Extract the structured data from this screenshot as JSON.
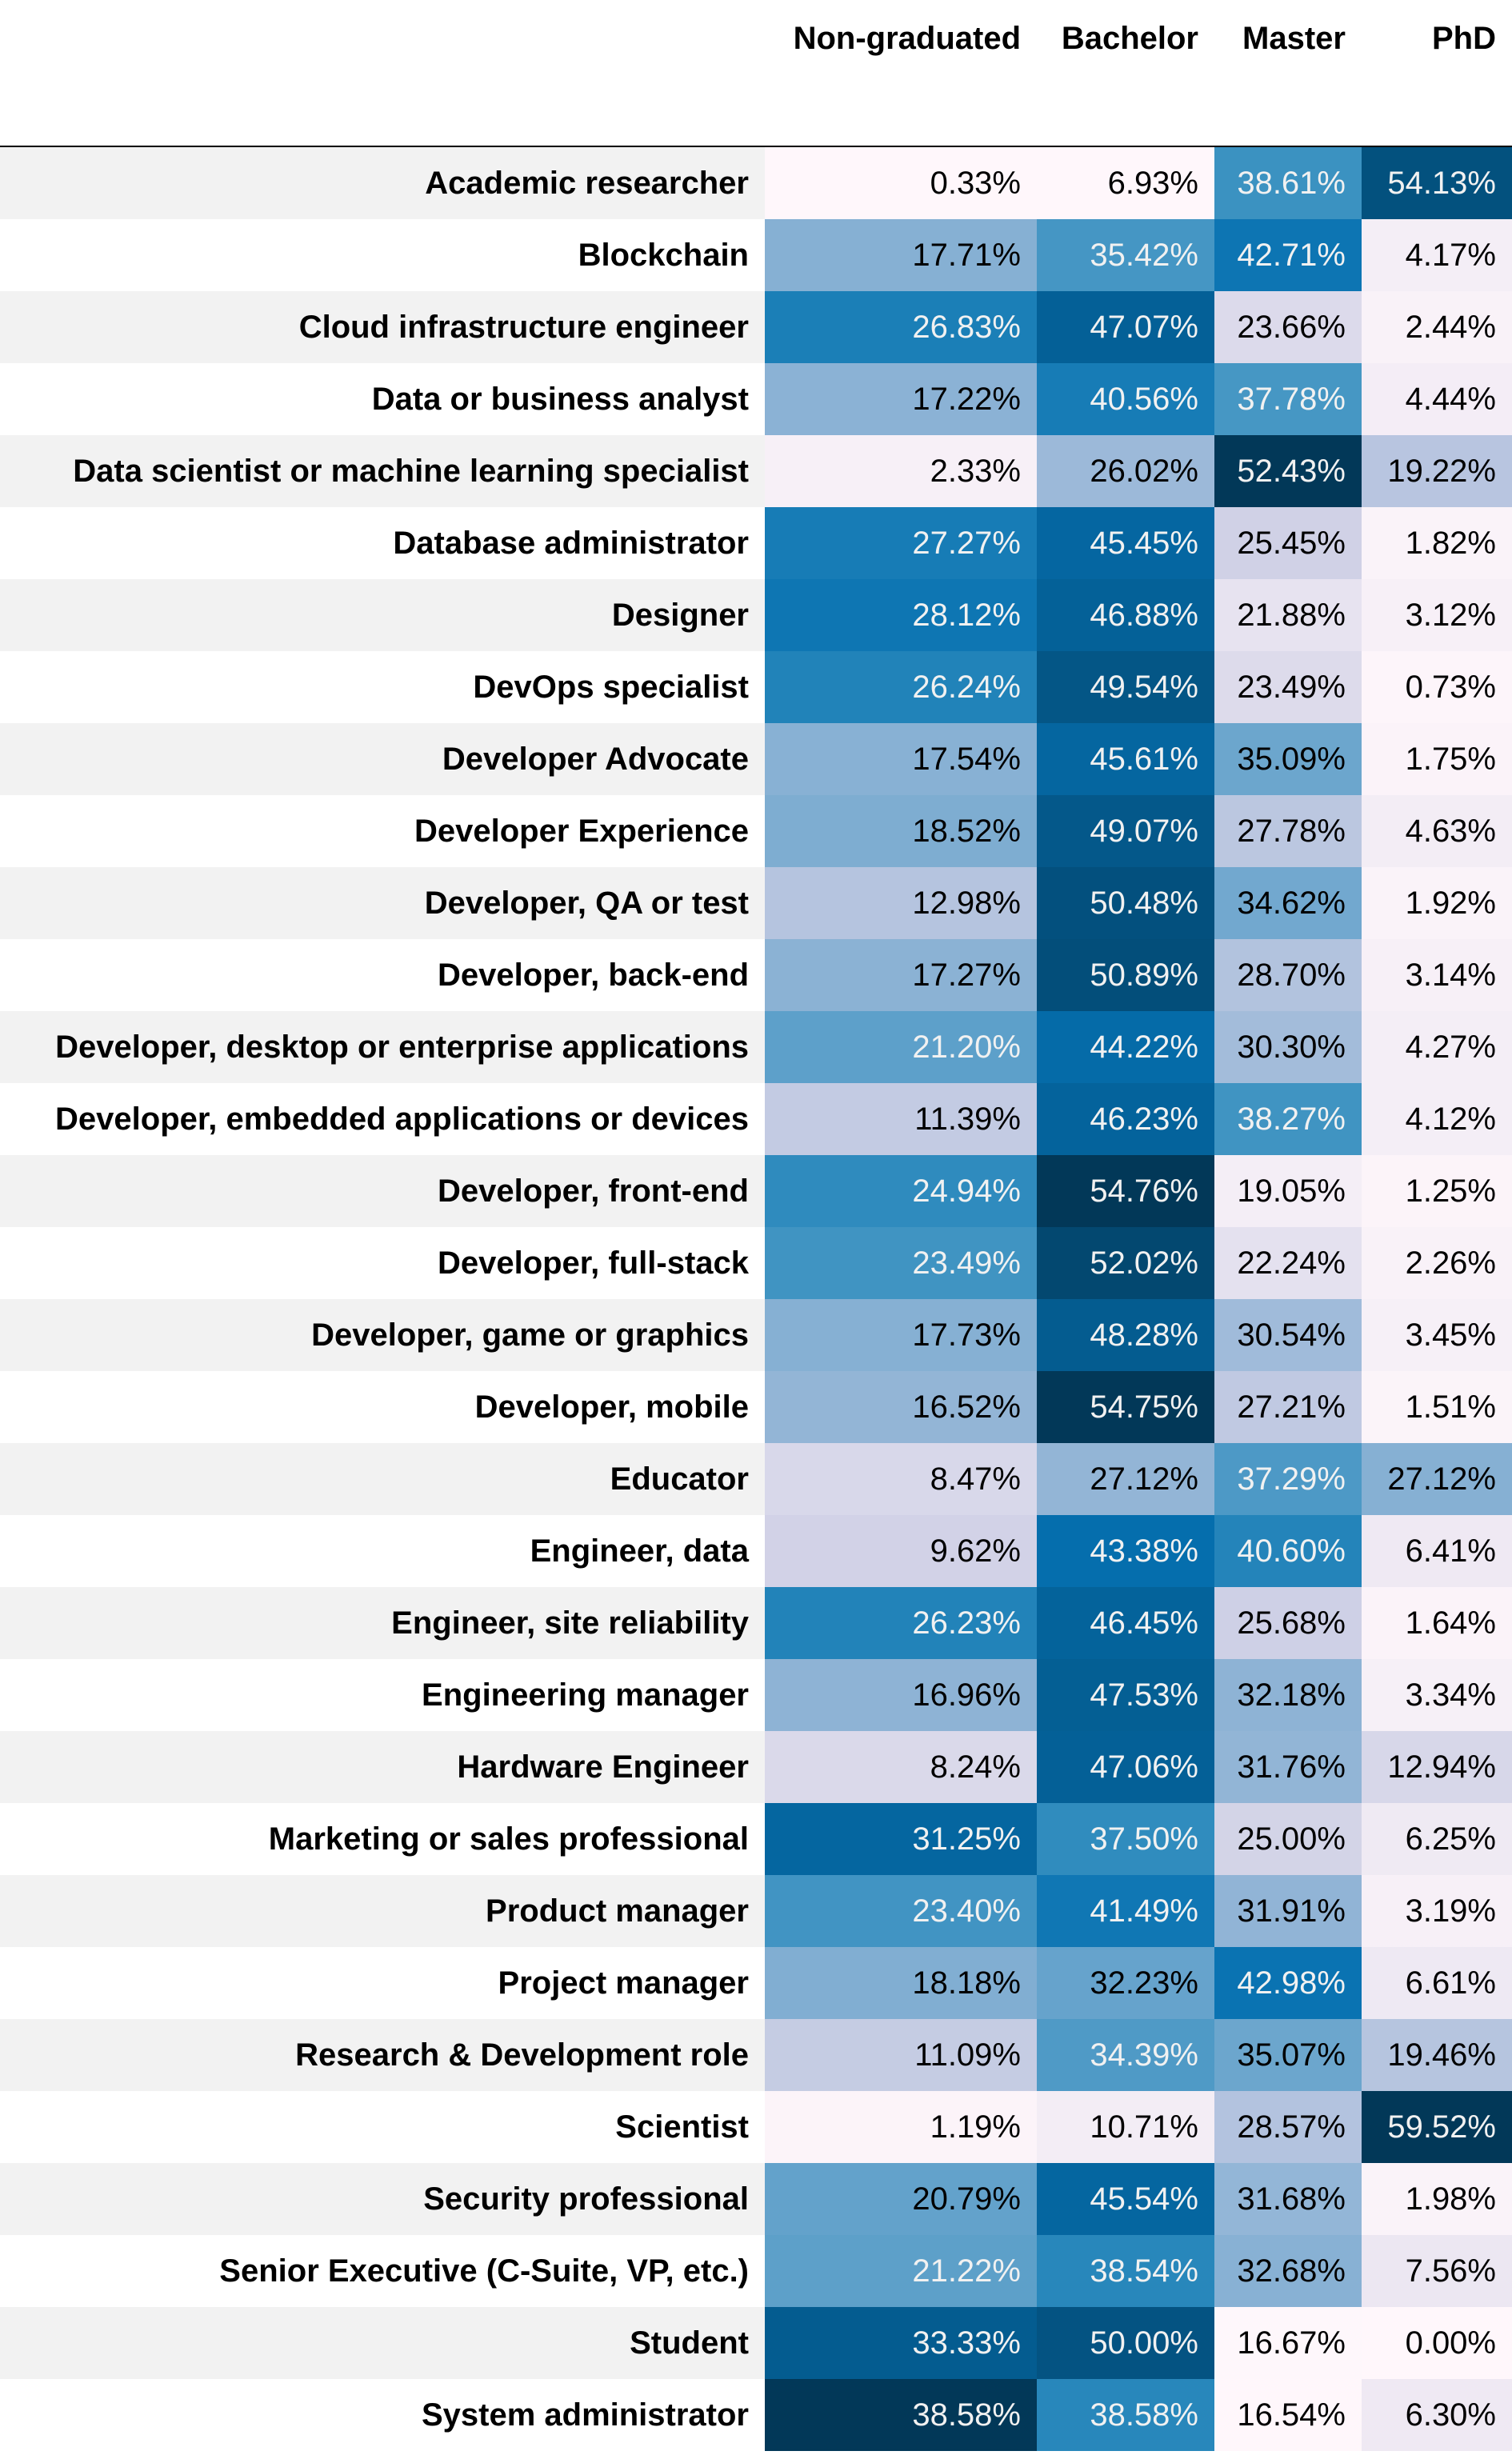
{
  "chart_data": {
    "type": "table",
    "columns": [
      "Non-graduated",
      "Bachelor",
      "Master",
      "PhD"
    ],
    "rows": [
      {
        "label": "Academic researcher",
        "values": [
          "0.33%",
          "6.93%",
          "38.61%",
          "54.13%"
        ]
      },
      {
        "label": "Blockchain",
        "values": [
          "17.71%",
          "35.42%",
          "42.71%",
          "4.17%"
        ]
      },
      {
        "label": "Cloud infrastructure engineer",
        "values": [
          "26.83%",
          "47.07%",
          "23.66%",
          "2.44%"
        ]
      },
      {
        "label": "Data or business analyst",
        "values": [
          "17.22%",
          "40.56%",
          "37.78%",
          "4.44%"
        ]
      },
      {
        "label": "Data scientist or machine learning specialist",
        "values": [
          "2.33%",
          "26.02%",
          "52.43%",
          "19.22%"
        ]
      },
      {
        "label": "Database administrator",
        "values": [
          "27.27%",
          "45.45%",
          "25.45%",
          "1.82%"
        ]
      },
      {
        "label": "Designer",
        "values": [
          "28.12%",
          "46.88%",
          "21.88%",
          "3.12%"
        ]
      },
      {
        "label": "DevOps specialist",
        "values": [
          "26.24%",
          "49.54%",
          "23.49%",
          "0.73%"
        ]
      },
      {
        "label": "Developer Advocate",
        "values": [
          "17.54%",
          "45.61%",
          "35.09%",
          "1.75%"
        ]
      },
      {
        "label": "Developer Experience",
        "values": [
          "18.52%",
          "49.07%",
          "27.78%",
          "4.63%"
        ]
      },
      {
        "label": "Developer, QA or test",
        "values": [
          "12.98%",
          "50.48%",
          "34.62%",
          "1.92%"
        ]
      },
      {
        "label": "Developer, back-end",
        "values": [
          "17.27%",
          "50.89%",
          "28.70%",
          "3.14%"
        ]
      },
      {
        "label": "Developer, desktop or enterprise applications",
        "values": [
          "21.20%",
          "44.22%",
          "30.30%",
          "4.27%"
        ]
      },
      {
        "label": "Developer, embedded applications or devices",
        "values": [
          "11.39%",
          "46.23%",
          "38.27%",
          "4.12%"
        ]
      },
      {
        "label": "Developer, front-end",
        "values": [
          "24.94%",
          "54.76%",
          "19.05%",
          "1.25%"
        ]
      },
      {
        "label": "Developer, full-stack",
        "values": [
          "23.49%",
          "52.02%",
          "22.24%",
          "2.26%"
        ]
      },
      {
        "label": "Developer, game or graphics",
        "values": [
          "17.73%",
          "48.28%",
          "30.54%",
          "3.45%"
        ]
      },
      {
        "label": "Developer, mobile",
        "values": [
          "16.52%",
          "54.75%",
          "27.21%",
          "1.51%"
        ]
      },
      {
        "label": "Educator",
        "values": [
          "8.47%",
          "27.12%",
          "37.29%",
          "27.12%"
        ]
      },
      {
        "label": "Engineer, data",
        "values": [
          "9.62%",
          "43.38%",
          "40.60%",
          "6.41%"
        ]
      },
      {
        "label": "Engineer, site reliability",
        "values": [
          "26.23%",
          "46.45%",
          "25.68%",
          "1.64%"
        ]
      },
      {
        "label": "Engineering manager",
        "values": [
          "16.96%",
          "47.53%",
          "32.18%",
          "3.34%"
        ]
      },
      {
        "label": "Hardware Engineer",
        "values": [
          "8.24%",
          "47.06%",
          "31.76%",
          "12.94%"
        ]
      },
      {
        "label": "Marketing or sales professional",
        "values": [
          "31.25%",
          "37.50%",
          "25.00%",
          "6.25%"
        ]
      },
      {
        "label": "Product manager",
        "values": [
          "23.40%",
          "41.49%",
          "31.91%",
          "3.19%"
        ]
      },
      {
        "label": "Project manager",
        "values": [
          "18.18%",
          "32.23%",
          "42.98%",
          "6.61%"
        ]
      },
      {
        "label": "Research & Development role",
        "values": [
          "11.09%",
          "34.39%",
          "35.07%",
          "19.46%"
        ]
      },
      {
        "label": "Scientist",
        "values": [
          "1.19%",
          "10.71%",
          "28.57%",
          "59.52%"
        ]
      },
      {
        "label": "Security professional",
        "values": [
          "20.79%",
          "45.54%",
          "31.68%",
          "1.98%"
        ]
      },
      {
        "label": "Senior Executive (C-Suite, VP, etc.)",
        "values": [
          "21.22%",
          "38.54%",
          "32.68%",
          "7.56%"
        ]
      },
      {
        "label": "Student",
        "values": [
          "33.33%",
          "50.00%",
          "16.67%",
          "0.00%"
        ]
      },
      {
        "label": "System administrator",
        "values": [
          "38.58%",
          "38.58%",
          "16.54%",
          "6.30%"
        ]
      }
    ],
    "colormap": "PuBu, scaled per column",
    "colors": {
      "low": "#fff7fb",
      "high": "#023858",
      "stripe": "#f2f2f2",
      "header_rule": "#000000"
    }
  }
}
